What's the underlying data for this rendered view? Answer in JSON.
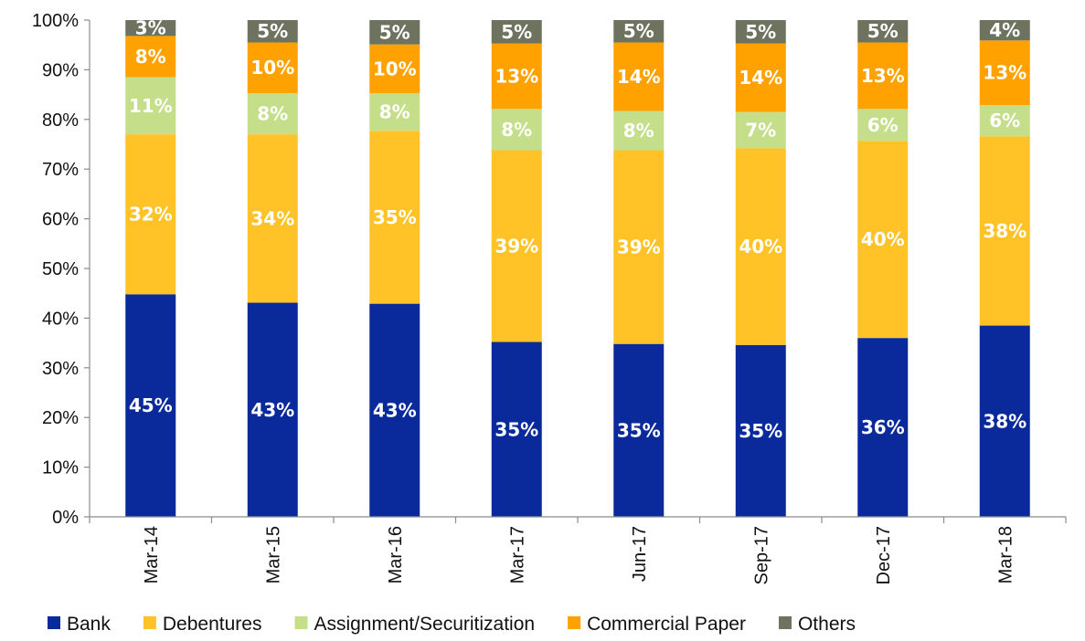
{
  "chart_data": {
    "type": "bar",
    "stacked": true,
    "percent_stacked": true,
    "title": "",
    "xlabel": "",
    "ylabel": "",
    "ylim": [
      0,
      100
    ],
    "yticks": [
      "0%",
      "10%",
      "20%",
      "30%",
      "40%",
      "50%",
      "60%",
      "70%",
      "80%",
      "90%",
      "100%"
    ],
    "grid": false,
    "legend_position": "bottom",
    "categories": [
      "Mar-14",
      "Mar-15",
      "Mar-16",
      "Mar-17",
      "Jun-17",
      "Sep-17",
      "Dec-17",
      "Mar-18"
    ],
    "series": [
      {
        "name": "Bank",
        "color": "#0a2a9c",
        "label_color": "#ffffff",
        "values": [
          44.8,
          43.1,
          42.9,
          35.2,
          34.8,
          34.6,
          36.0,
          38.5
        ],
        "labels": [
          "45%",
          "43%",
          "43%",
          "35%",
          "35%",
          "35%",
          "36%",
          "38%"
        ]
      },
      {
        "name": "Debentures",
        "color": "#ffc328",
        "label_color": "#ffffff",
        "values": [
          32.2,
          33.9,
          34.8,
          38.6,
          39.0,
          39.6,
          39.7,
          38.1
        ],
        "labels": [
          "32%",
          "34%",
          "35%",
          "39%",
          "39%",
          "40%",
          "40%",
          "38%"
        ]
      },
      {
        "name": "Assignment/Securitization",
        "color": "#c4de8a",
        "label_color": "#ffffff",
        "values": [
          11.5,
          8.3,
          7.6,
          8.3,
          7.9,
          7.3,
          6.4,
          6.3
        ],
        "labels": [
          "11%",
          "8%",
          "8%",
          "8%",
          "8%",
          "7%",
          "6%",
          "6%"
        ]
      },
      {
        "name": "Commercial Paper",
        "color": "#ffa200",
        "label_color": "#ffffff",
        "values": [
          8.3,
          10.2,
          9.8,
          13.2,
          13.8,
          13.8,
          13.4,
          13.0
        ],
        "labels": [
          "8%",
          "10%",
          "10%",
          "13%",
          "14%",
          "14%",
          "13%",
          "13%"
        ]
      },
      {
        "name": "Others",
        "color": "#6e7360",
        "label_color": "#ffffff",
        "values": [
          3.2,
          4.5,
          4.9,
          4.7,
          4.5,
          4.7,
          4.5,
          4.1
        ],
        "labels": [
          "3%",
          "5%",
          "5%",
          "5%",
          "5%",
          "5%",
          "5%",
          "4%"
        ]
      }
    ]
  }
}
